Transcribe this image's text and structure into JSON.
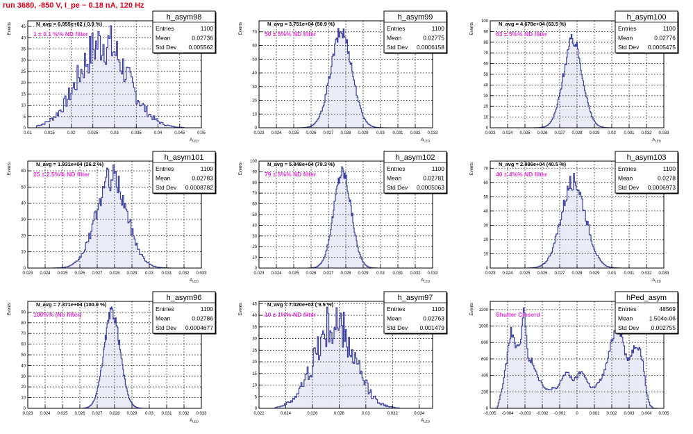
{
  "page": {
    "title": "run 3680,  -850 V, I_pe ~ 0.18 nA, 120 Hz"
  },
  "stats_labels": {
    "entries": "Entries",
    "mean": "Mean",
    "std": "Std Dev"
  },
  "colors": {
    "hist_line": "#3b3fa0",
    "hist_fill": "#5558b8",
    "note": "#e630cf",
    "title_red": "#e8001c"
  },
  "chart_data": [
    {
      "type": "bar",
      "name": "h_asym98",
      "title": "N_avg = 6.955e+02 ( 0.9 %)",
      "note": "1 ± 0.1 %% ND filter",
      "xlabel": "A_LED",
      "ylabel": "Events",
      "xlim": [
        0.01,
        0.05
      ],
      "ylim": [
        0,
        47.5
      ],
      "xticks": [
        0.01,
        0.015,
        0.02,
        0.025,
        0.03,
        0.035,
        0.04,
        0.045,
        0.05
      ],
      "yticks": [
        0,
        5,
        10,
        15,
        20,
        25,
        30,
        35,
        40,
        45
      ],
      "stats": {
        "entries": "1100",
        "mean": "0.02736",
        "std": "0.005562"
      },
      "grid": true,
      "profile": {
        "type": "gauss",
        "mu": 0.02736,
        "sigma": 0.005562,
        "peak": 38,
        "noise": 0.28,
        "bins": 120,
        "range": [
          0.012,
          0.046
        ]
      }
    },
    {
      "type": "bar",
      "name": "h_asym99",
      "title": "N_avg = 3.751e+04 (50.9 %)",
      "note": "50 ± 5%% ND filter",
      "xlabel": "A_LED",
      "ylabel": "Events",
      "xlim": [
        0.023,
        0.033
      ],
      "ylim": [
        0,
        78
      ],
      "xticks": [
        0.023,
        0.024,
        0.025,
        0.026,
        0.027,
        0.028,
        0.029,
        0.03,
        0.031,
        0.032,
        0.033
      ],
      "yticks": [
        0,
        10,
        20,
        30,
        40,
        50,
        60,
        70
      ],
      "stats": {
        "entries": "1100",
        "mean": "0.02775",
        "std": "0.0006158"
      },
      "grid": true,
      "profile": {
        "type": "gauss",
        "mu": 0.02775,
        "sigma": 0.0006158,
        "peak": 70,
        "noise": 0.08,
        "bins": 100,
        "range": [
          0.0252,
          0.0302
        ]
      }
    },
    {
      "type": "bar",
      "name": "h_asym100",
      "title": "N_avg = 4.678e+04 (63.5 %)",
      "note": "63 ± 5%% ND filter",
      "xlabel": "A_LED",
      "ylabel": "Events",
      "xlim": [
        0.023,
        0.033
      ],
      "ylim": [
        0,
        100
      ],
      "xticks": [
        0.023,
        0.024,
        0.025,
        0.026,
        0.027,
        0.028,
        0.029,
        0.03,
        0.031,
        0.032,
        0.033
      ],
      "yticks": [
        0,
        10,
        20,
        30,
        40,
        50,
        60,
        70,
        80,
        90,
        100
      ],
      "stats": {
        "entries": "1100",
        "mean": "0.02776",
        "std": "0.0005475"
      },
      "grid": true,
      "profile": {
        "type": "gauss",
        "mu": 0.02776,
        "sigma": 0.0005475,
        "peak": 82,
        "noise": 0.08,
        "bins": 100,
        "range": [
          0.0255,
          0.03
        ]
      }
    },
    {
      "type": "bar",
      "name": "h_asym101",
      "title": "N_avg = 1.931e+04 (26.2 %)",
      "note": "25 ± 2.5%% ND filter",
      "xlabel": "A_LED",
      "ylabel": "Events",
      "xlim": [
        0.023,
        0.033
      ],
      "ylim": [
        0,
        66
      ],
      "xticks": [
        0.023,
        0.024,
        0.025,
        0.026,
        0.027,
        0.028,
        0.029,
        0.03,
        0.031,
        0.032,
        0.033
      ],
      "yticks": [
        0,
        10,
        20,
        30,
        40,
        50,
        60
      ],
      "stats": {
        "entries": "1100",
        "mean": "0.02783",
        "std": "0.0008782"
      },
      "grid": true,
      "profile": {
        "type": "gauss",
        "mu": 0.02783,
        "sigma": 0.0008782,
        "peak": 56,
        "noise": 0.15,
        "bins": 110,
        "range": [
          0.0245,
          0.0312
        ]
      }
    },
    {
      "type": "bar",
      "name": "h_asym102",
      "title": "N_avg = 5.848e+04 (79.3 %)",
      "note": "79 ± 5%% ND filter",
      "xlabel": "A_LED",
      "ylabel": "Events",
      "xlim": [
        0.023,
        0.033
      ],
      "ylim": [
        0,
        100
      ],
      "xticks": [
        0.023,
        0.024,
        0.025,
        0.026,
        0.027,
        0.028,
        0.029,
        0.03,
        0.031,
        0.032,
        0.033
      ],
      "yticks": [
        0,
        10,
        20,
        30,
        40,
        50,
        60,
        70,
        80,
        90,
        100
      ],
      "stats": {
        "entries": "1100",
        "mean": "0.02781",
        "std": "0.0005063"
      },
      "grid": true,
      "profile": {
        "type": "gauss",
        "mu": 0.02781,
        "sigma": 0.0005063,
        "peak": 90,
        "noise": 0.08,
        "bins": 100,
        "range": [
          0.0258,
          0.0298
        ]
      }
    },
    {
      "type": "bar",
      "name": "h_asym103",
      "title": "N_avg = 2.986e+04 (40.5 %)",
      "note": "40 ± 4%% ND filter",
      "xlabel": "A_LED",
      "ylabel": "Events",
      "xlim": [
        0.023,
        0.033
      ],
      "ylim": [
        0,
        75
      ],
      "xticks": [
        0.023,
        0.024,
        0.025,
        0.026,
        0.027,
        0.028,
        0.029,
        0.03,
        0.031,
        0.032,
        0.033
      ],
      "yticks": [
        0,
        10,
        20,
        30,
        40,
        50,
        60,
        70
      ],
      "stats": {
        "entries": "1100",
        "mean": "0.0278",
        "std": "0.0006973"
      },
      "grid": true,
      "profile": {
        "type": "gauss",
        "mu": 0.0278,
        "sigma": 0.0006973,
        "peak": 61,
        "noise": 0.1,
        "bins": 100,
        "range": [
          0.0252,
          0.0305
        ]
      }
    },
    {
      "type": "bar",
      "name": "h_asym96",
      "title": "N_avg = 7.371e+04 (100.0 %)",
      "note": "100%% (No filter)",
      "xlabel": "A_LED",
      "ylabel": "Events",
      "xlim": [
        0.023,
        0.033
      ],
      "ylim": [
        0,
        100
      ],
      "xticks": [
        0.023,
        0.024,
        0.025,
        0.026,
        0.027,
        0.028,
        0.029,
        0.03,
        0.031,
        0.032,
        0.033
      ],
      "yticks": [
        0,
        10,
        20,
        30,
        40,
        50,
        60,
        70,
        80,
        90
      ],
      "stats": {
        "entries": "1100",
        "mean": "0.02786",
        "std": "0.0004677"
      },
      "grid": true,
      "profile": {
        "type": "gauss",
        "mu": 0.02786,
        "sigma": 0.0004677,
        "peak": 90,
        "noise": 0.07,
        "bins": 100,
        "range": [
          0.0262,
          0.0297
        ]
      }
    },
    {
      "type": "bar",
      "name": "h_asym97",
      "title": "N_avg = 7.020e+03 ( 9.5 %)",
      "note": "10 ± 1%% ND filter",
      "xlabel": "A_LED",
      "ylabel": "Events",
      "xlim": [
        0.022,
        0.035
      ],
      "ylim": [
        0,
        46
      ],
      "xticks": [
        0.022,
        0.024,
        0.026,
        0.028,
        0.03,
        0.032,
        0.034
      ],
      "yticks": [
        0,
        5,
        10,
        15,
        20,
        25,
        30,
        35,
        40,
        45
      ],
      "stats": {
        "entries": "1100",
        "mean": "0.02763",
        "std": "0.001479"
      },
      "grid": true,
      "profile": {
        "type": "gauss",
        "mu": 0.02763,
        "sigma": 0.001479,
        "peak": 36,
        "noise": 0.3,
        "bins": 120,
        "range": [
          0.0232,
          0.0325
        ]
      }
    },
    {
      "type": "bar",
      "name": "hPed_asym",
      "title": "",
      "note": "Shutter Closerd",
      "xlabel": "",
      "ylabel": "Events",
      "xlim": [
        -0.005,
        0.005
      ],
      "ylim": [
        0,
        1300
      ],
      "xticks": [
        -0.005,
        -0.004,
        -0.003,
        -0.002,
        -0.001,
        0,
        0.001,
        0.002,
        0.003,
        0.004,
        0.005
      ],
      "yticks": [
        0,
        200,
        400,
        600,
        800,
        1000,
        1200
      ],
      "stats": {
        "entries": "48569",
        "mean": "1.504e-06",
        "std": "0.002755"
      },
      "grid": true,
      "profile": {
        "type": "points",
        "x": [
          -0.0046,
          -0.0043,
          -0.004,
          -0.0038,
          -0.0036,
          -0.0034,
          -0.0032,
          -0.0031,
          -0.003,
          -0.0028,
          -0.0026,
          -0.0024,
          -0.0022,
          -0.002,
          -0.0018,
          -0.0016,
          -0.0014,
          -0.0012,
          -0.001,
          -0.0008,
          -0.0006,
          -0.0004,
          -0.0002,
          0.0,
          0.0002,
          0.0004,
          0.0006,
          0.0008,
          0.001,
          0.0012,
          0.0014,
          0.0016,
          0.0018,
          0.002,
          0.0022,
          0.0024,
          0.0026,
          0.0028,
          0.003,
          0.0032,
          0.0034,
          0.0036,
          0.0038,
          0.004,
          0.0042,
          0.0044
        ],
        "y": [
          0,
          250,
          650,
          960,
          800,
          720,
          900,
          1240,
          1080,
          560,
          580,
          480,
          360,
          300,
          230,
          220,
          250,
          230,
          300,
          390,
          440,
          390,
          340,
          380,
          440,
          420,
          320,
          260,
          250,
          300,
          360,
          460,
          620,
          820,
          960,
          980,
          880,
          640,
          600,
          700,
          780,
          740,
          560,
          200,
          40,
          0
        ],
        "bins": 180,
        "range": [
          -0.0047,
          0.0046
        ],
        "noise": 0.06
      }
    }
  ]
}
